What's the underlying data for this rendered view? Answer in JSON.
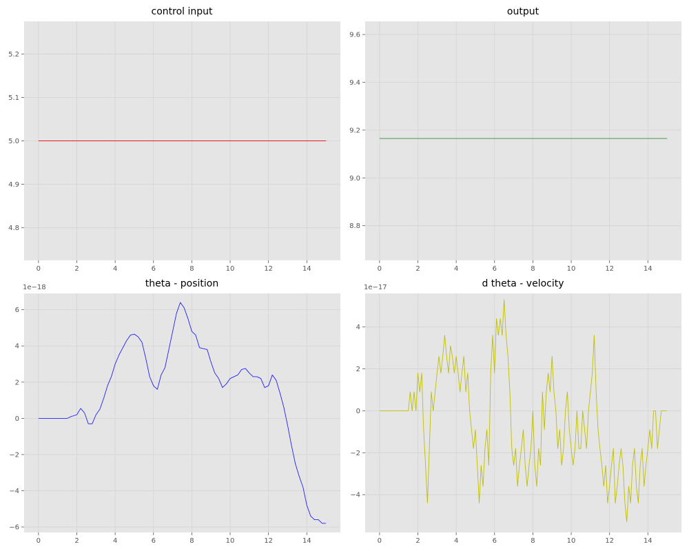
{
  "chart_data": [
    {
      "type": "line",
      "title": "control input",
      "color": "#e41a1c",
      "xlim": [
        -0.75,
        15.75
      ],
      "ylim": [
        4.725,
        5.275
      ],
      "xticks": [
        0,
        2,
        4,
        6,
        8,
        10,
        12,
        14
      ],
      "yticks": [
        4.8,
        4.9,
        5.0,
        5.1,
        5.2
      ],
      "ytick_labels": [
        "4.8",
        "4.9",
        "5.0",
        "5.1",
        "5.2"
      ],
      "offset_label": "",
      "series": [
        {
          "x": [
            0,
            15
          ],
          "y": [
            5.0,
            5.0
          ]
        }
      ]
    },
    {
      "type": "line",
      "title": "output",
      "color": "#2e8b2e",
      "xlim": [
        -0.75,
        15.75
      ],
      "ylim": [
        8.655,
        9.655
      ],
      "xticks": [
        0,
        2,
        4,
        6,
        8,
        10,
        12,
        14
      ],
      "yticks": [
        8.8,
        9.0,
        9.2,
        9.4,
        9.6
      ],
      "ytick_labels": [
        "8.8",
        "9.0",
        "9.2",
        "9.4",
        "9.6"
      ],
      "offset_label": "",
      "series": [
        {
          "x": [
            0,
            15
          ],
          "y": [
            9.165,
            9.165
          ]
        }
      ]
    },
    {
      "type": "line",
      "title": "theta - position",
      "color": "#1f1fff",
      "xlim": [
        -0.75,
        15.75
      ],
      "ylim": [
        -6.3,
        6.9
      ],
      "xticks": [
        0,
        2,
        4,
        6,
        8,
        10,
        12,
        14
      ],
      "yticks": [
        -6,
        -4,
        -2,
        0,
        2,
        4,
        6
      ],
      "ytick_labels": [
        "−6",
        "−4",
        "−2",
        "0",
        "2",
        "4",
        "6"
      ],
      "offset_label": "1e−18",
      "series": [
        {
          "x": [
            0,
            1.5,
            1.7,
            2.0,
            2.2,
            2.4,
            2.6,
            2.8,
            3.0,
            3.2,
            3.4,
            3.6,
            3.8,
            4.0,
            4.2,
            4.4,
            4.6,
            4.8,
            5.0,
            5.2,
            5.4,
            5.6,
            5.8,
            6.0,
            6.2,
            6.4,
            6.6,
            6.8,
            7.0,
            7.2,
            7.4,
            7.6,
            7.8,
            8.0,
            8.2,
            8.4,
            8.6,
            8.8,
            9.0,
            9.2,
            9.4,
            9.6,
            9.8,
            10.0,
            10.2,
            10.4,
            10.6,
            10.8,
            11.0,
            11.2,
            11.4,
            11.6,
            11.8,
            12.0,
            12.2,
            12.4,
            12.6,
            12.8,
            13.0,
            13.2,
            13.4,
            13.6,
            13.8,
            14.0,
            14.2,
            14.4,
            14.6,
            14.8,
            15.0
          ],
          "y": [
            0,
            0,
            0.1,
            0.2,
            0.55,
            0.3,
            -0.3,
            -0.3,
            0.2,
            0.5,
            1.1,
            1.8,
            2.3,
            3.0,
            3.5,
            3.9,
            4.3,
            4.6,
            4.65,
            4.5,
            4.2,
            3.3,
            2.3,
            1.8,
            1.6,
            2.4,
            2.8,
            3.8,
            4.8,
            5.8,
            6.4,
            6.1,
            5.5,
            4.8,
            4.6,
            3.9,
            3.85,
            3.8,
            3.1,
            2.5,
            2.2,
            1.7,
            1.9,
            2.2,
            2.3,
            2.4,
            2.7,
            2.75,
            2.5,
            2.3,
            2.3,
            2.2,
            1.7,
            1.8,
            2.4,
            2.1,
            1.4,
            0.6,
            -0.4,
            -1.5,
            -2.5,
            -3.2,
            -3.8,
            -4.8,
            -5.4,
            -5.6,
            -5.6,
            -5.8,
            -5.8
          ]
        }
      ]
    },
    {
      "type": "line",
      "title": "d theta - velocity",
      "color": "#bfbf00",
      "xlim": [
        -0.75,
        15.75
      ],
      "ylim": [
        -5.8,
        5.6
      ],
      "xticks": [
        0,
        2,
        4,
        6,
        8,
        10,
        12,
        14
      ],
      "yticks": [
        -4,
        -2,
        0,
        2,
        4
      ],
      "ytick_labels": [
        "−4",
        "−2",
        "0",
        "2",
        "4"
      ],
      "offset_label": "1e−17",
      "series": [
        {
          "x": [
            0,
            1.5,
            1.6,
            1.7,
            1.8,
            1.9,
            2.0,
            2.1,
            2.2,
            2.3,
            2.4,
            2.5,
            2.6,
            2.7,
            2.8,
            2.9,
            3.0,
            3.1,
            3.2,
            3.3,
            3.4,
            3.5,
            3.6,
            3.7,
            3.8,
            3.9,
            4.0,
            4.1,
            4.2,
            4.3,
            4.4,
            4.5,
            4.6,
            4.7,
            4.8,
            4.9,
            5.0,
            5.1,
            5.2,
            5.3,
            5.4,
            5.5,
            5.6,
            5.7,
            5.8,
            5.9,
            6.0,
            6.1,
            6.2,
            6.3,
            6.4,
            6.5,
            6.6,
            6.7,
            6.8,
            6.9,
            7.0,
            7.1,
            7.2,
            7.3,
            7.4,
            7.5,
            7.6,
            7.7,
            7.8,
            7.9,
            8.0,
            8.1,
            8.2,
            8.3,
            8.4,
            8.5,
            8.6,
            8.7,
            8.8,
            8.9,
            9.0,
            9.1,
            9.2,
            9.3,
            9.4,
            9.5,
            9.6,
            9.7,
            9.8,
            9.9,
            10.0,
            10.1,
            10.2,
            10.3,
            10.4,
            10.5,
            10.6,
            10.7,
            10.8,
            10.9,
            11.0,
            11.1,
            11.2,
            11.3,
            11.4,
            11.5,
            11.6,
            11.7,
            11.8,
            11.9,
            12.0,
            12.1,
            12.2,
            12.3,
            12.4,
            12.5,
            12.6,
            12.7,
            12.8,
            12.9,
            13.0,
            13.1,
            13.2,
            13.3,
            13.4,
            13.5,
            13.6,
            13.7,
            13.8,
            13.9,
            14.0,
            14.1,
            14.2,
            14.3,
            14.4,
            14.5,
            14.6,
            14.7,
            14.8,
            14.9,
            15.0
          ],
          "y": [
            0,
            0,
            0.9,
            0,
            0.9,
            0,
            1.8,
            0.9,
            1.8,
            -0.9,
            -2.6,
            -4.4,
            -1.8,
            0.9,
            0,
            0.9,
            1.8,
            2.6,
            1.8,
            2.6,
            3.6,
            2.6,
            1.8,
            3.1,
            2.6,
            1.8,
            2.6,
            1.8,
            0.9,
            1.8,
            2.6,
            0.9,
            1.8,
            0,
            -0.9,
            -1.8,
            -0.9,
            -2.6,
            -4.4,
            -2.6,
            -3.6,
            -1.8,
            -0.9,
            -2.6,
            1.8,
            3.6,
            1.8,
            4.4,
            3.6,
            4.4,
            3.6,
            5.3,
            3.6,
            2.6,
            0.9,
            -1.8,
            -2.6,
            -1.8,
            -3.6,
            -2.6,
            -1.8,
            -0.9,
            -2.6,
            -3.6,
            -2.6,
            -1.8,
            0,
            -2.6,
            -3.6,
            -1.8,
            -2.6,
            0.9,
            -0.9,
            0.9,
            1.8,
            0.9,
            2.6,
            0.9,
            0,
            -1.8,
            -0.9,
            -2.6,
            -1.8,
            0,
            0.9,
            -0.9,
            -1.8,
            -2.6,
            -1.8,
            0,
            -1.8,
            -1.8,
            0,
            -0.9,
            -1.8,
            0,
            0.9,
            1.8,
            3.6,
            0.9,
            -0.9,
            -1.8,
            -2.6,
            -3.6,
            -2.6,
            -4.4,
            -3.6,
            -2.6,
            -1.8,
            -4.4,
            -3.6,
            -2.6,
            -1.8,
            -2.6,
            -4.4,
            -5.3,
            -3.6,
            -4.4,
            -2.6,
            -1.8,
            -3.6,
            -4.4,
            -2.6,
            -1.8,
            -3.6,
            -2.6,
            -1.8,
            -0.9,
            -1.8,
            0,
            0,
            -1.8,
            -0.9,
            0,
            0,
            0,
            0
          ]
        }
      ]
    }
  ]
}
